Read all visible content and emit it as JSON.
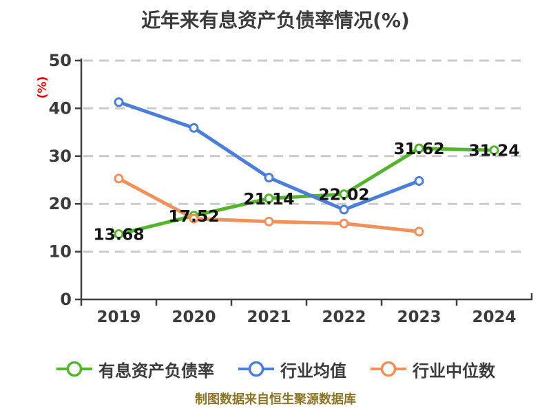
{
  "title": "近年来有息资产负债率情况(%)",
  "footer": {
    "note": "制图数据来自恒生聚源数据库",
    "color": "#8b7426"
  },
  "colors": {
    "main_series": "#55b42d",
    "industry_mean": "#4a7ed9",
    "industry_median": "#f0915c",
    "grid": "#cbcbcb",
    "axis": "#3f3f3f",
    "tick_text": "#3b3b3b",
    "data_label": "#141414",
    "ylabel": "#e60000",
    "footer": "#8b7426"
  },
  "chart_data": {
    "type": "line",
    "title": "近年来有息资产负债率情况(%)",
    "xlabel": "",
    "ylabel": "(%)",
    "ylabel_color": "#e60000",
    "categories": [
      "2019",
      "2020",
      "2021",
      "2022",
      "2023",
      "2024"
    ],
    "ylim": [
      0,
      50
    ],
    "yticks": [
      0,
      10,
      20,
      30,
      40,
      50
    ],
    "grid": "horizontal-dashed",
    "legend_position": "bottom",
    "marker_style": "white-filled-circle-colored-ring",
    "series": [
      {
        "name": "有息资产负债率",
        "color": "#55b42d",
        "values": [
          13.68,
          17.52,
          21.14,
          22.02,
          31.62,
          31.24
        ],
        "data_labels": [
          "13.68",
          "17.52",
          "21.14",
          "22.02",
          "31.62",
          "31.24"
        ],
        "show_labels": true
      },
      {
        "name": "行业均值",
        "color": "#4a7ed9",
        "values": [
          41.3,
          35.9,
          25.5,
          18.8,
          24.8,
          null
        ],
        "show_labels": false
      },
      {
        "name": "行业中位数",
        "color": "#f0915c",
        "values": [
          25.3,
          16.9,
          16.3,
          15.9,
          14.2,
          null
        ],
        "show_labels": false
      }
    ]
  }
}
